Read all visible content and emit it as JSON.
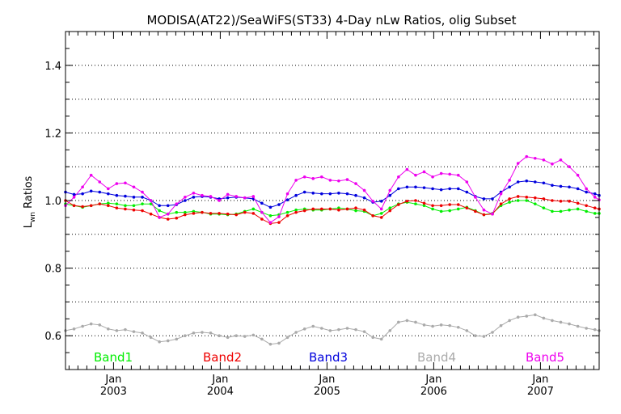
{
  "chart_data": {
    "type": "line",
    "title": "MODISA(AT22)/SeaWiFS(ST33) 4-Day nLw Ratios, olig Subset",
    "ylabel_main": "L",
    "ylabel_sub": "wn",
    "ylabel_rest": " Ratios",
    "ylim": [
      0.5,
      1.5
    ],
    "xlim": [
      2002.55,
      2007.55
    ],
    "yticks": [
      0.6,
      0.8,
      1.0,
      1.2,
      1.4
    ],
    "ytick_labels": [
      "0.6",
      "0.8",
      "1.0",
      "1.2",
      "1.4"
    ],
    "ygrid": [
      0.6,
      0.7,
      0.8,
      0.9,
      1.0,
      1.1,
      1.2,
      1.3,
      1.4
    ],
    "xticks": [
      {
        "x": 2003.0,
        "label": "Jan",
        "year": "2003"
      },
      {
        "x": 2004.0,
        "label": "Jan",
        "year": "2004"
      },
      {
        "x": 2005.0,
        "label": "Jan",
        "year": "2005"
      },
      {
        "x": 2006.0,
        "label": "Jan",
        "year": "2006"
      },
      {
        "x": 2007.0,
        "label": "Jan",
        "year": "2007"
      }
    ],
    "grid": true,
    "legend_position": "bottom",
    "series": [
      {
        "name": "Band1",
        "color": "#00ee00",
        "x": [
          2002.55,
          2002.63,
          2002.71,
          2002.79,
          2002.87,
          2002.95,
          2003.03,
          2003.11,
          2003.19,
          2003.27,
          2003.35,
          2003.43,
          2003.51,
          2003.59,
          2003.67,
          2003.75,
          2003.83,
          2003.91,
          2003.99,
          2004.07,
          2004.15,
          2004.23,
          2004.31,
          2004.39,
          2004.47,
          2004.55,
          2004.63,
          2004.71,
          2004.79,
          2004.87,
          2004.95,
          2005.03,
          2005.11,
          2005.19,
          2005.27,
          2005.35,
          2005.43,
          2005.51,
          2005.59,
          2005.67,
          2005.75,
          2005.83,
          2005.91,
          2005.99,
          2006.07,
          2006.15,
          2006.23,
          2006.31,
          2006.39,
          2006.47,
          2006.55,
          2006.63,
          2006.71,
          2006.79,
          2006.87,
          2006.95,
          2007.03,
          2007.11,
          2007.19,
          2007.27,
          2007.35,
          2007.43,
          2007.51,
          2007.55
        ],
        "values": [
          0.99,
          0.985,
          0.98,
          0.985,
          0.99,
          0.992,
          0.99,
          0.985,
          0.985,
          0.99,
          0.99,
          0.97,
          0.96,
          0.965,
          0.965,
          0.968,
          0.965,
          0.96,
          0.96,
          0.958,
          0.96,
          0.968,
          0.975,
          0.965,
          0.955,
          0.958,
          0.965,
          0.972,
          0.975,
          0.972,
          0.972,
          0.975,
          0.978,
          0.975,
          0.97,
          0.968,
          0.955,
          0.962,
          0.978,
          0.99,
          0.995,
          0.99,
          0.985,
          0.975,
          0.968,
          0.97,
          0.975,
          0.98,
          0.97,
          0.958,
          0.962,
          0.985,
          0.995,
          1.0,
          1.0,
          0.99,
          0.978,
          0.968,
          0.968,
          0.972,
          0.975,
          0.968,
          0.962,
          0.962
        ]
      },
      {
        "name": "Band2",
        "color": "#ee0000",
        "x": [
          2002.55,
          2002.63,
          2002.71,
          2002.79,
          2002.87,
          2002.95,
          2003.03,
          2003.11,
          2003.19,
          2003.27,
          2003.35,
          2003.43,
          2003.51,
          2003.59,
          2003.67,
          2003.75,
          2003.83,
          2003.91,
          2003.99,
          2004.07,
          2004.15,
          2004.23,
          2004.31,
          2004.39,
          2004.47,
          2004.55,
          2004.63,
          2004.71,
          2004.79,
          2004.87,
          2004.95,
          2005.03,
          2005.11,
          2005.19,
          2005.27,
          2005.35,
          2005.43,
          2005.51,
          2005.59,
          2005.67,
          2005.75,
          2005.83,
          2005.91,
          2005.99,
          2006.07,
          2006.15,
          2006.23,
          2006.31,
          2006.39,
          2006.47,
          2006.55,
          2006.63,
          2006.71,
          2006.79,
          2006.87,
          2006.95,
          2007.03,
          2007.11,
          2007.19,
          2007.27,
          2007.35,
          2007.43,
          2007.51,
          2007.55
        ],
        "values": [
          1.0,
          0.985,
          0.982,
          0.985,
          0.99,
          0.985,
          0.978,
          0.975,
          0.972,
          0.97,
          0.96,
          0.95,
          0.945,
          0.948,
          0.958,
          0.962,
          0.965,
          0.962,
          0.962,
          0.96,
          0.958,
          0.965,
          0.962,
          0.945,
          0.932,
          0.935,
          0.955,
          0.965,
          0.97,
          0.975,
          0.975,
          0.975,
          0.972,
          0.975,
          0.978,
          0.972,
          0.955,
          0.95,
          0.97,
          0.988,
          0.998,
          1.0,
          0.992,
          0.985,
          0.985,
          0.988,
          0.988,
          0.978,
          0.968,
          0.958,
          0.96,
          0.99,
          1.005,
          1.012,
          1.01,
          1.008,
          1.005,
          1.0,
          0.998,
          0.998,
          0.992,
          0.985,
          0.978,
          0.975
        ]
      },
      {
        "name": "Band3",
        "color": "#0000dd",
        "x": [
          2002.55,
          2002.63,
          2002.71,
          2002.79,
          2002.87,
          2002.95,
          2003.03,
          2003.11,
          2003.19,
          2003.27,
          2003.35,
          2003.43,
          2003.51,
          2003.59,
          2003.67,
          2003.75,
          2003.83,
          2003.91,
          2003.99,
          2004.07,
          2004.15,
          2004.23,
          2004.31,
          2004.39,
          2004.47,
          2004.55,
          2004.63,
          2004.71,
          2004.79,
          2004.87,
          2004.95,
          2005.03,
          2005.11,
          2005.19,
          2005.27,
          2005.35,
          2005.43,
          2005.51,
          2005.59,
          2005.67,
          2005.75,
          2005.83,
          2005.91,
          2005.99,
          2006.07,
          2006.15,
          2006.23,
          2006.31,
          2006.39,
          2006.47,
          2006.55,
          2006.63,
          2006.71,
          2006.79,
          2006.87,
          2006.95,
          2007.03,
          2007.11,
          2007.19,
          2007.27,
          2007.35,
          2007.43,
          2007.51,
          2007.55
        ],
        "values": [
          1.025,
          1.018,
          1.02,
          1.028,
          1.025,
          1.02,
          1.015,
          1.013,
          1.01,
          1.01,
          1.0,
          0.985,
          0.985,
          0.988,
          1.0,
          1.01,
          1.012,
          1.01,
          1.005,
          1.008,
          1.01,
          1.008,
          1.005,
          0.992,
          0.98,
          0.988,
          1.002,
          1.015,
          1.025,
          1.022,
          1.02,
          1.02,
          1.022,
          1.02,
          1.015,
          1.008,
          0.995,
          0.998,
          1.015,
          1.035,
          1.04,
          1.04,
          1.038,
          1.035,
          1.032,
          1.035,
          1.035,
          1.025,
          1.012,
          1.005,
          1.005,
          1.025,
          1.04,
          1.055,
          1.058,
          1.055,
          1.052,
          1.045,
          1.042,
          1.04,
          1.035,
          1.025,
          1.02,
          1.015
        ]
      },
      {
        "name": "Band4",
        "color": "#aaaaaa",
        "x": [
          2002.55,
          2002.63,
          2002.71,
          2002.79,
          2002.87,
          2002.95,
          2003.03,
          2003.11,
          2003.19,
          2003.27,
          2003.35,
          2003.43,
          2003.51,
          2003.59,
          2003.67,
          2003.75,
          2003.83,
          2003.91,
          2003.99,
          2004.07,
          2004.15,
          2004.23,
          2004.31,
          2004.39,
          2004.47,
          2004.55,
          2004.63,
          2004.71,
          2004.79,
          2004.87,
          2004.95,
          2005.03,
          2005.11,
          2005.19,
          2005.27,
          2005.35,
          2005.43,
          2005.51,
          2005.59,
          2005.67,
          2005.75,
          2005.83,
          2005.91,
          2005.99,
          2006.07,
          2006.15,
          2006.23,
          2006.31,
          2006.39,
          2006.47,
          2006.55,
          2006.63,
          2006.71,
          2006.79,
          2006.87,
          2006.95,
          2007.03,
          2007.11,
          2007.19,
          2007.27,
          2007.35,
          2007.43,
          2007.51,
          2007.55
        ],
        "values": [
          0.615,
          0.62,
          0.628,
          0.635,
          0.632,
          0.62,
          0.615,
          0.618,
          0.612,
          0.608,
          0.595,
          0.582,
          0.585,
          0.59,
          0.6,
          0.608,
          0.61,
          0.608,
          0.6,
          0.595,
          0.6,
          0.598,
          0.602,
          0.59,
          0.575,
          0.578,
          0.595,
          0.61,
          0.62,
          0.628,
          0.622,
          0.615,
          0.618,
          0.622,
          0.618,
          0.612,
          0.595,
          0.59,
          0.615,
          0.64,
          0.645,
          0.64,
          0.632,
          0.628,
          0.632,
          0.63,
          0.625,
          0.615,
          0.6,
          0.598,
          0.61,
          0.63,
          0.645,
          0.655,
          0.658,
          0.662,
          0.652,
          0.645,
          0.64,
          0.635,
          0.628,
          0.622,
          0.618,
          0.615
        ]
      },
      {
        "name": "Band5",
        "color": "#ee00ee",
        "x": [
          2002.55,
          2002.63,
          2002.71,
          2002.79,
          2002.87,
          2002.95,
          2003.03,
          2003.11,
          2003.19,
          2003.27,
          2003.35,
          2003.43,
          2003.51,
          2003.59,
          2003.67,
          2003.75,
          2003.83,
          2003.91,
          2003.99,
          2004.07,
          2004.15,
          2004.23,
          2004.31,
          2004.39,
          2004.47,
          2004.55,
          2004.63,
          2004.71,
          2004.79,
          2004.87,
          2004.95,
          2005.03,
          2005.11,
          2005.19,
          2005.27,
          2005.35,
          2005.43,
          2005.51,
          2005.59,
          2005.67,
          2005.75,
          2005.83,
          2005.91,
          2005.99,
          2006.07,
          2006.15,
          2006.23,
          2006.31,
          2006.39,
          2006.47,
          2006.55,
          2006.63,
          2006.71,
          2006.79,
          2006.87,
          2006.95,
          2007.03,
          2007.11,
          2007.19,
          2007.27,
          2007.35,
          2007.43,
          2007.51,
          2007.55
        ],
        "values": [
          0.985,
          1.01,
          1.04,
          1.075,
          1.055,
          1.035,
          1.05,
          1.052,
          1.04,
          1.025,
          1.0,
          0.95,
          0.96,
          0.99,
          1.01,
          1.022,
          1.015,
          1.012,
          1.0,
          1.018,
          1.012,
          1.008,
          1.012,
          0.965,
          0.935,
          0.952,
          1.02,
          1.06,
          1.07,
          1.065,
          1.07,
          1.06,
          1.058,
          1.062,
          1.05,
          1.03,
          0.998,
          0.975,
          1.03,
          1.07,
          1.092,
          1.075,
          1.085,
          1.07,
          1.08,
          1.078,
          1.075,
          1.055,
          1.01,
          0.972,
          0.96,
          1.02,
          1.06,
          1.11,
          1.13,
          1.125,
          1.12,
          1.108,
          1.12,
          1.1,
          1.075,
          1.035,
          1.01,
          1.002
        ]
      }
    ]
  }
}
